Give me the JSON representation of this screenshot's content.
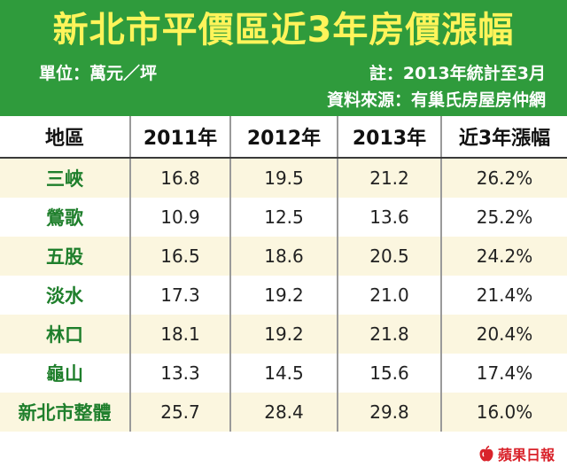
{
  "title": "新北市平價區近3年房價漲幅",
  "unit": "單位：萬元／坪",
  "note": "註：2013年統計至3月",
  "source": "資料來源：有巢氏房屋房仲網",
  "colors": {
    "header_bg": "#2f9b3c",
    "title": "#fff45a",
    "region_text": "#1f7f2c",
    "stripe": "#fbf6df",
    "logo": "#d9232b"
  },
  "table": {
    "headers": [
      "地區",
      "2011年",
      "2012年",
      "2013年",
      "近3年漲幅"
    ],
    "rows": [
      [
        "三峽",
        "16.8",
        "19.5",
        "21.2",
        "26.2%"
      ],
      [
        "鶯歌",
        "10.9",
        "12.5",
        "13.6",
        "25.2%"
      ],
      [
        "五股",
        "16.5",
        "18.6",
        "20.5",
        "24.2%"
      ],
      [
        "淡水",
        "17.3",
        "19.2",
        "21.0",
        "21.4%"
      ],
      [
        "林口",
        "18.1",
        "19.2",
        "21.8",
        "20.4%"
      ],
      [
        "龜山",
        "13.3",
        "14.5",
        "15.6",
        "17.4%"
      ],
      [
        "新北市整體",
        "25.7",
        "28.4",
        "29.8",
        "16.0%"
      ]
    ]
  },
  "logo": {
    "icon": "apple-icon",
    "text": "蘋果日報"
  }
}
